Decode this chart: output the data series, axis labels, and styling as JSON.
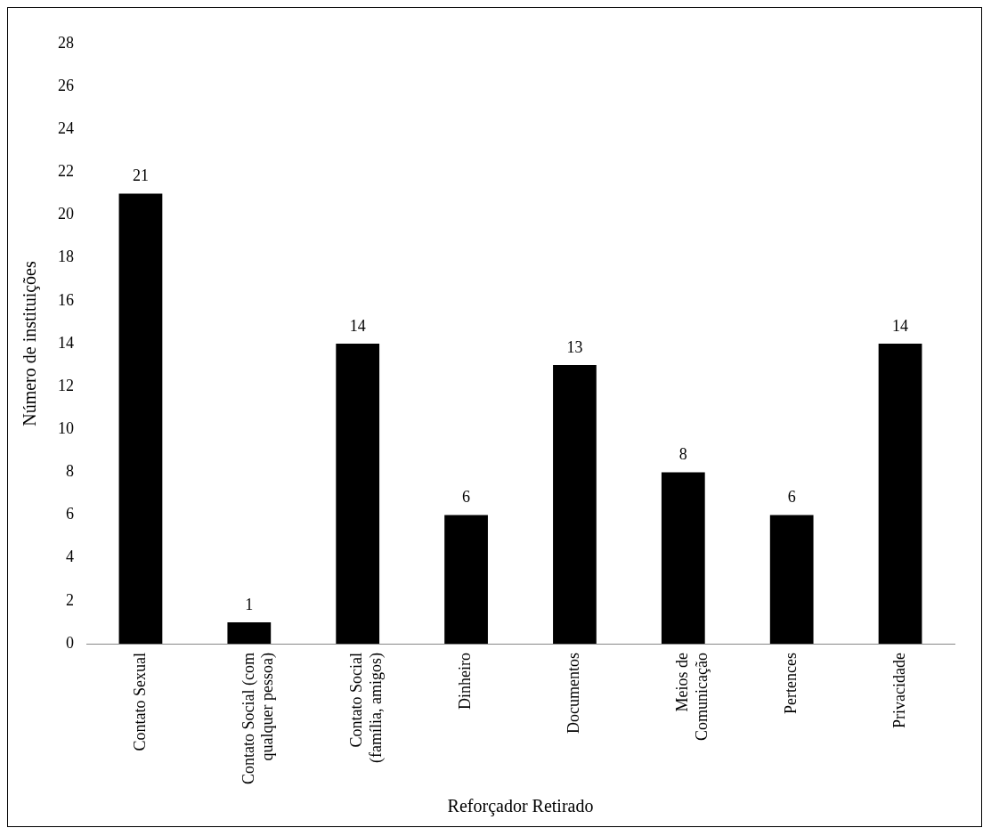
{
  "chart_data": {
    "type": "bar",
    "xlabel": "Reforçador Retirado",
    "ylabel": "Número de instituições",
    "categories": [
      "Contato Sexual",
      "Contato Social (com qualquer pessoa)",
      "Contato Social (família, amigos)",
      "Dinheiro",
      "Documentos",
      "Meios de Comunicação",
      "Pertences",
      "Privacidade"
    ],
    "values": [
      21,
      1,
      14,
      6,
      13,
      8,
      6,
      14
    ],
    "color": "#000000",
    "ylim": [
      0,
      28
    ],
    "yticks": [
      0,
      2,
      4,
      6,
      8,
      10,
      12,
      14,
      16,
      18,
      20,
      22,
      24,
      26,
      28
    ],
    "grid": false,
    "legend": false,
    "data_labels": true
  }
}
